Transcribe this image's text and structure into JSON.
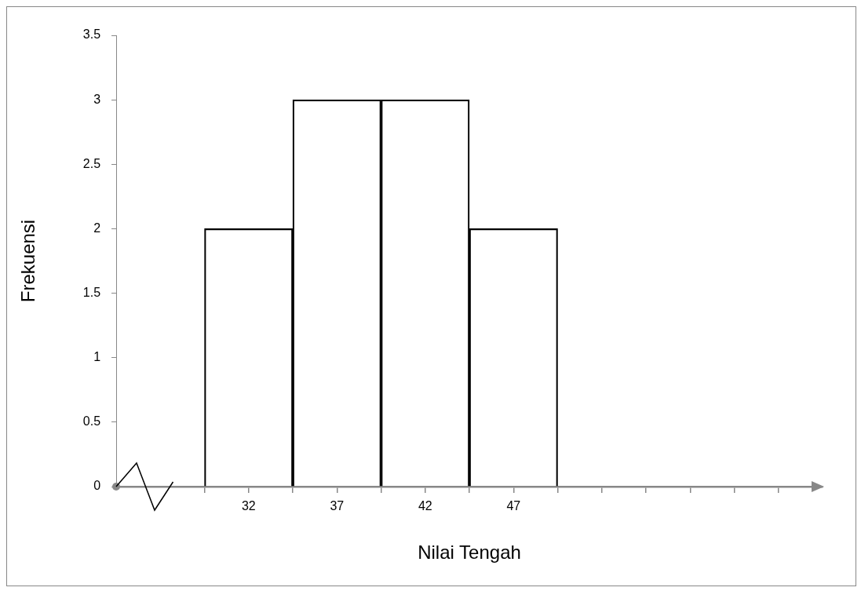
{
  "chart_data": {
    "type": "histogram",
    "bins": [
      29.5,
      34.5,
      39.5,
      44.5,
      49.5
    ],
    "values": [
      2,
      3,
      3,
      2
    ],
    "color": "#000000",
    "xlabel": "Nilai Tengah",
    "ylabel": "Frekuensi",
    "xlim": [
      24.5,
      64.5
    ],
    "xticks": [
      {
        "value": 29.5,
        "label": null
      },
      {
        "value": 32,
        "label": "32"
      },
      {
        "value": 34.5,
        "label": null
      },
      {
        "value": 37,
        "label": "37"
      },
      {
        "value": 39.5,
        "label": null
      },
      {
        "value": 42,
        "label": "42"
      },
      {
        "value": 44.5,
        "label": null
      },
      {
        "value": 47,
        "label": "47"
      },
      {
        "value": 49.5,
        "label": null
      },
      {
        "value": 52,
        "label": null
      },
      {
        "value": 54.5,
        "label": null
      },
      {
        "value": 57,
        "label": null
      },
      {
        "value": 59.5,
        "label": null
      },
      {
        "value": 62,
        "label": null
      }
    ],
    "ylim": [
      0,
      3.5
    ],
    "yticks": [
      0,
      0.5,
      1,
      1.5,
      2,
      2.5,
      3,
      3.5
    ],
    "grid": false,
    "legend": false
  }
}
